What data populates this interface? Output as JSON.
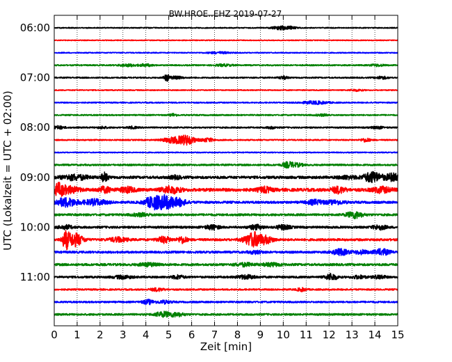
{
  "chart_data": {
    "type": "line",
    "title": "BW.HROE..EHZ 2019-07-27",
    "xlabel": "Zeit  [min]",
    "ylabel": "UTC (Lokalzeit = UTC + 02:00)",
    "xlim": [
      0,
      15
    ],
    "x_ticks": [
      0,
      1,
      2,
      3,
      4,
      5,
      6,
      7,
      8,
      9,
      10,
      11,
      12,
      13,
      14,
      15
    ],
    "x_tick_labels": [
      "0",
      "1",
      "2",
      "3",
      "4",
      "5",
      "6",
      "7",
      "8",
      "9",
      "10",
      "11",
      "12",
      "13",
      "14",
      "15"
    ],
    "y_tick_labels": [
      "06:00",
      "07:00",
      "08:00",
      "09:00",
      "10:00",
      "11:00"
    ],
    "grid": "vertical dotted lines at each minute",
    "color_cycle": [
      "#000000",
      "#ff0000",
      "#0000ff",
      "#008000"
    ],
    "series": [
      {
        "label": "06:00",
        "color": "#000000",
        "noise": 0.7,
        "events": [
          {
            "t": 9.9,
            "a": 2.5,
            "w": 0.35
          },
          {
            "t": 10.4,
            "a": 1.6,
            "w": 0.2
          }
        ]
      },
      {
        "color": "#ff0000",
        "noise": 0.6,
        "events": []
      },
      {
        "color": "#0000ff",
        "noise": 0.7,
        "events": [
          {
            "t": 7.2,
            "a": 1.2,
            "w": 0.5
          }
        ]
      },
      {
        "color": "#008000",
        "noise": 0.9,
        "events": [
          {
            "t": 3.2,
            "a": 1.5,
            "w": 0.4
          },
          {
            "t": 4.0,
            "a": 1.5,
            "w": 0.3
          },
          {
            "t": 7.4,
            "a": 1.3,
            "w": 0.4
          },
          {
            "t": 14.1,
            "a": 1.4,
            "w": 0.3
          }
        ]
      },
      {
        "label": "07:00",
        "color": "#000000",
        "noise": 0.9,
        "events": [
          {
            "t": 4.9,
            "a": 4.5,
            "w": 0.12
          },
          {
            "t": 5.3,
            "a": 1.8,
            "w": 0.3
          },
          {
            "t": 10.0,
            "a": 2.0,
            "w": 0.2
          },
          {
            "t": 14.3,
            "a": 1.8,
            "w": 0.25
          }
        ]
      },
      {
        "color": "#ff0000",
        "noise": 0.7,
        "events": [
          {
            "t": 13.2,
            "a": 1.2,
            "w": 0.3
          }
        ]
      },
      {
        "color": "#0000ff",
        "noise": 0.8,
        "events": [
          {
            "t": 11.4,
            "a": 2.0,
            "w": 0.6
          }
        ]
      },
      {
        "color": "#008000",
        "noise": 0.9,
        "events": [
          {
            "t": 5.2,
            "a": 2.0,
            "w": 0.15
          },
          {
            "t": 11.7,
            "a": 1.2,
            "w": 0.3
          }
        ]
      },
      {
        "label": "08:00",
        "color": "#000000",
        "noise": 1.0,
        "events": [
          {
            "t": 0.2,
            "a": 2.0,
            "w": 0.25
          },
          {
            "t": 2.1,
            "a": 1.4,
            "w": 0.2
          },
          {
            "t": 3.4,
            "a": 1.4,
            "w": 0.2
          },
          {
            "t": 9.5,
            "a": 1.4,
            "w": 0.2
          },
          {
            "t": 14.1,
            "a": 1.6,
            "w": 0.25
          }
        ]
      },
      {
        "color": "#ff0000",
        "noise": 0.9,
        "events": [
          {
            "t": 5.2,
            "a": 4.0,
            "w": 0.45
          },
          {
            "t": 5.8,
            "a": 6.0,
            "w": 0.35
          },
          {
            "t": 6.7,
            "a": 2.5,
            "w": 0.3
          },
          {
            "t": 13.6,
            "a": 2.5,
            "w": 0.2
          }
        ]
      },
      {
        "color": "#0000ff",
        "noise": 0.7,
        "events": []
      },
      {
        "color": "#008000",
        "noise": 1.2,
        "events": [
          {
            "t": 10.2,
            "a": 3.5,
            "w": 0.25
          },
          {
            "t": 10.6,
            "a": 2.0,
            "w": 0.3
          }
        ]
      },
      {
        "label": "09:00",
        "color": "#000000",
        "noise": 1.8,
        "events": [
          {
            "t": 0.9,
            "a": 3.5,
            "w": 0.6
          },
          {
            "t": 2.2,
            "a": 6.0,
            "w": 0.15
          },
          {
            "t": 5.3,
            "a": 2.0,
            "w": 0.25
          },
          {
            "t": 12.8,
            "a": 2.0,
            "w": 0.4
          },
          {
            "t": 13.9,
            "a": 7.0,
            "w": 0.4
          },
          {
            "t": 14.8,
            "a": 5.0,
            "w": 0.35
          }
        ]
      },
      {
        "color": "#ff0000",
        "noise": 2.2,
        "events": [
          {
            "t": 0.2,
            "a": 8.0,
            "w": 0.25
          },
          {
            "t": 0.7,
            "a": 4.0,
            "w": 0.4
          },
          {
            "t": 2.2,
            "a": 3.5,
            "w": 0.3
          },
          {
            "t": 3.2,
            "a": 3.5,
            "w": 0.3
          },
          {
            "t": 5.1,
            "a": 4.5,
            "w": 0.4
          },
          {
            "t": 9.2,
            "a": 3.5,
            "w": 0.3
          },
          {
            "t": 12.4,
            "a": 4.0,
            "w": 0.3
          },
          {
            "t": 14.3,
            "a": 3.5,
            "w": 0.4
          }
        ]
      },
      {
        "color": "#0000ff",
        "noise": 1.6,
        "events": [
          {
            "t": 0.5,
            "a": 6.0,
            "w": 0.5
          },
          {
            "t": 1.8,
            "a": 4.0,
            "w": 0.5
          },
          {
            "t": 4.3,
            "a": 8.0,
            "w": 0.35
          },
          {
            "t": 4.9,
            "a": 9.0,
            "w": 0.4
          },
          {
            "t": 5.5,
            "a": 4.0,
            "w": 0.3
          },
          {
            "t": 11.4,
            "a": 3.0,
            "w": 0.4
          },
          {
            "t": 12.3,
            "a": 2.5,
            "w": 0.4
          }
        ]
      },
      {
        "color": "#008000",
        "noise": 1.5,
        "events": [
          {
            "t": 3.8,
            "a": 2.0,
            "w": 0.4
          },
          {
            "t": 13.1,
            "a": 4.5,
            "w": 0.35
          }
        ]
      },
      {
        "label": "10:00",
        "color": "#000000",
        "noise": 1.5,
        "events": [
          {
            "t": 0.5,
            "a": 2.5,
            "w": 0.3
          },
          {
            "t": 6.9,
            "a": 3.0,
            "w": 0.3
          },
          {
            "t": 8.8,
            "a": 3.0,
            "w": 0.3
          },
          {
            "t": 10.0,
            "a": 3.0,
            "w": 0.3
          },
          {
            "t": 14.2,
            "a": 3.0,
            "w": 0.3
          }
        ]
      },
      {
        "color": "#ff0000",
        "noise": 1.6,
        "events": [
          {
            "t": 0.5,
            "a": 11.0,
            "w": 0.15
          },
          {
            "t": 0.9,
            "a": 9.0,
            "w": 0.35
          },
          {
            "t": 2.8,
            "a": 3.0,
            "w": 0.4
          },
          {
            "t": 4.8,
            "a": 4.0,
            "w": 0.3
          },
          {
            "t": 5.6,
            "a": 4.5,
            "w": 0.2
          },
          {
            "t": 8.7,
            "a": 10.0,
            "w": 0.4
          },
          {
            "t": 9.3,
            "a": 4.0,
            "w": 0.3
          }
        ]
      },
      {
        "color": "#0000ff",
        "noise": 1.5,
        "events": [
          {
            "t": 8.8,
            "a": 2.0,
            "w": 0.3
          },
          {
            "t": 12.5,
            "a": 4.0,
            "w": 0.35
          },
          {
            "t": 13.4,
            "a": 2.5,
            "w": 0.3
          },
          {
            "t": 14.3,
            "a": 4.0,
            "w": 0.35
          }
        ]
      },
      {
        "color": "#008000",
        "noise": 1.6,
        "events": [
          {
            "t": 4.1,
            "a": 2.0,
            "w": 0.4
          },
          {
            "t": 8.3,
            "a": 2.0,
            "w": 0.4
          },
          {
            "t": 9.5,
            "a": 2.0,
            "w": 0.4
          }
        ]
      },
      {
        "label": "11:00",
        "color": "#000000",
        "noise": 1.4,
        "events": [
          {
            "t": 3.0,
            "a": 2.0,
            "w": 0.4
          },
          {
            "t": 5.4,
            "a": 2.5,
            "w": 0.25
          },
          {
            "t": 8.4,
            "a": 2.5,
            "w": 0.4
          },
          {
            "t": 12.1,
            "a": 4.5,
            "w": 0.25
          },
          {
            "t": 13.3,
            "a": 2.0,
            "w": 0.3
          },
          {
            "t": 14.2,
            "a": 2.5,
            "w": 0.25
          }
        ]
      },
      {
        "color": "#ff0000",
        "noise": 1.1,
        "events": [
          {
            "t": 4.5,
            "a": 2.0,
            "w": 0.3
          },
          {
            "t": 10.8,
            "a": 2.2,
            "w": 0.2
          }
        ]
      },
      {
        "color": "#0000ff",
        "noise": 1.2,
        "events": [
          {
            "t": 4.1,
            "a": 3.0,
            "w": 0.25
          },
          {
            "t": 4.8,
            "a": 2.0,
            "w": 0.3
          }
        ]
      },
      {
        "color": "#008000",
        "noise": 1.3,
        "events": [
          {
            "t": 4.8,
            "a": 3.5,
            "w": 0.4
          },
          {
            "t": 5.4,
            "a": 2.0,
            "w": 0.3
          }
        ]
      }
    ]
  }
}
